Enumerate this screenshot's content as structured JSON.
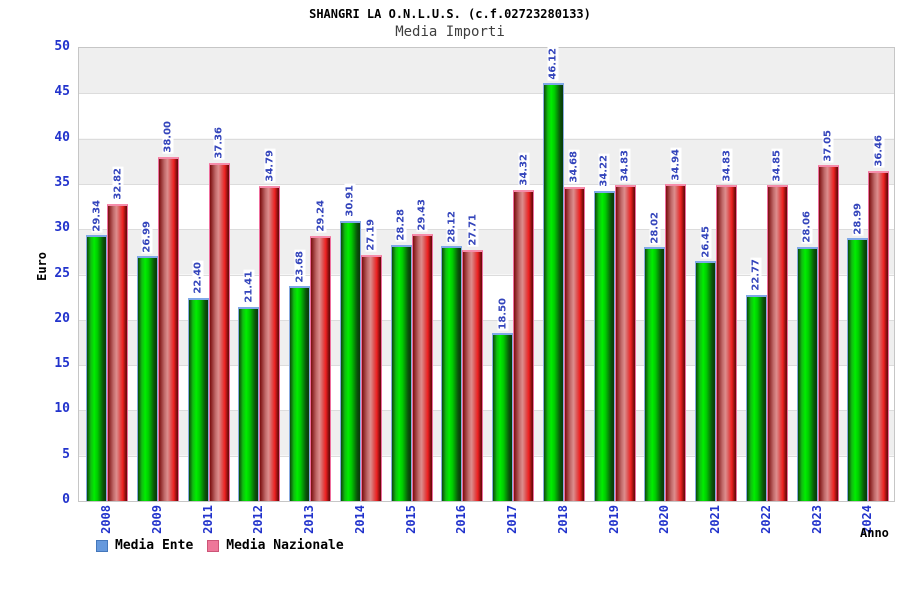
{
  "title": "SHANGRI LA O.N.L.U.S. (c.f.02723280133)",
  "subtitle": "Media Importi",
  "y_axis_title": "Euro",
  "x_axis_title": "Anno",
  "legend": {
    "items": [
      {
        "label": "Media Ente",
        "swatch": "#6699dd",
        "swatch_border": "#4477bb"
      },
      {
        "label": "Media Nazionale",
        "swatch": "#ee7799",
        "swatch_border": "#cc5577"
      }
    ]
  },
  "colors": {
    "bar_ente": "#00cc00",
    "bar_naz": "#dd2222",
    "bar_ente_cap": "#7ea8e8",
    "bar_naz_cap": "#f58caa",
    "axis_text": "#2233cc",
    "value_text": "#3344bb",
    "band": "#efefef",
    "gridline": "#dcdcdc"
  },
  "chart_data": {
    "type": "bar",
    "title": "Media Importi",
    "categories": [
      "2008",
      "2009",
      "2011",
      "2012",
      "2013",
      "2014",
      "2015",
      "2016",
      "2017",
      "2018",
      "2019",
      "2020",
      "2021",
      "2022",
      "2023",
      "2024"
    ],
    "series": [
      {
        "name": "Media Ente",
        "values": [
          29.34,
          26.99,
          22.4,
          21.41,
          23.68,
          30.91,
          28.28,
          28.12,
          18.5,
          46.12,
          34.22,
          28.02,
          26.45,
          22.77,
          28.06,
          28.99
        ]
      },
      {
        "name": "Media Nazionale",
        "values": [
          32.82,
          38.0,
          37.36,
          34.79,
          29.24,
          27.19,
          29.43,
          27.71,
          34.32,
          34.68,
          34.83,
          34.94,
          34.83,
          34.85,
          37.05,
          36.46
        ]
      }
    ],
    "xlabel": "Anno",
    "ylabel": "Euro",
    "ylim": [
      0,
      50
    ],
    "ytick_step": 5,
    "grid": true,
    "legend_position": "bottom-left",
    "value_labels": true
  }
}
